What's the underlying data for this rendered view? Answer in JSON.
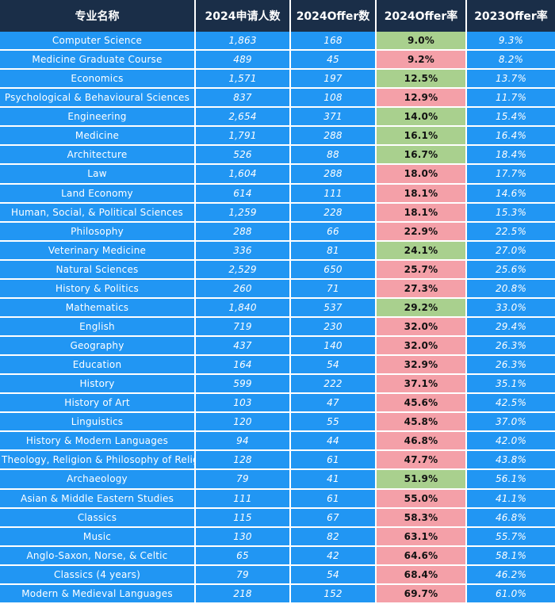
{
  "headers": [
    "专业名称",
    "2024申请人数",
    "2024Offer数",
    "2024Offer率",
    "2023Offer率"
  ],
  "colors": {
    "header_bg": "#1a2e48",
    "cell_bg": "#2196f3",
    "good": "#a9d08e",
    "bad": "#f4a0a8"
  },
  "rows": [
    {
      "major": "Computer Science",
      "applicants": "1,863",
      "offers": "168",
      "rate2024": "9.0%",
      "rate2023": "9.3%",
      "status": "green"
    },
    {
      "major": "Medicine Graduate Course",
      "applicants": "489",
      "offers": "45",
      "rate2024": "9.2%",
      "rate2023": "8.2%",
      "status": "red"
    },
    {
      "major": "Economics",
      "applicants": "1,571",
      "offers": "197",
      "rate2024": "12.5%",
      "rate2023": "13.7%",
      "status": "green"
    },
    {
      "major": "Psychological & Behavioural Sciences",
      "applicants": "837",
      "offers": "108",
      "rate2024": "12.9%",
      "rate2023": "11.7%",
      "status": "red"
    },
    {
      "major": "Engineering",
      "applicants": "2,654",
      "offers": "371",
      "rate2024": "14.0%",
      "rate2023": "15.4%",
      "status": "green"
    },
    {
      "major": "Medicine",
      "applicants": "1,791",
      "offers": "288",
      "rate2024": "16.1%",
      "rate2023": "16.4%",
      "status": "green"
    },
    {
      "major": "Architecture",
      "applicants": "526",
      "offers": "88",
      "rate2024": "16.7%",
      "rate2023": "18.4%",
      "status": "green"
    },
    {
      "major": "Law",
      "applicants": "1,604",
      "offers": "288",
      "rate2024": "18.0%",
      "rate2023": "17.7%",
      "status": "red"
    },
    {
      "major": "Land Economy",
      "applicants": "614",
      "offers": "111",
      "rate2024": "18.1%",
      "rate2023": "14.6%",
      "status": "red"
    },
    {
      "major": "Human, Social, & Political Sciences",
      "applicants": "1,259",
      "offers": "228",
      "rate2024": "18.1%",
      "rate2023": "15.3%",
      "status": "red"
    },
    {
      "major": "Philosophy",
      "applicants": "288",
      "offers": "66",
      "rate2024": "22.9%",
      "rate2023": "22.5%",
      "status": "red"
    },
    {
      "major": "Veterinary Medicine",
      "applicants": "336",
      "offers": "81",
      "rate2024": "24.1%",
      "rate2023": "27.0%",
      "status": "green"
    },
    {
      "major": "Natural Sciences",
      "applicants": "2,529",
      "offers": "650",
      "rate2024": "25.7%",
      "rate2023": "25.6%",
      "status": "red"
    },
    {
      "major": "History & Politics",
      "applicants": "260",
      "offers": "71",
      "rate2024": "27.3%",
      "rate2023": "20.8%",
      "status": "red"
    },
    {
      "major": "Mathematics",
      "applicants": "1,840",
      "offers": "537",
      "rate2024": "29.2%",
      "rate2023": "33.0%",
      "status": "green"
    },
    {
      "major": "English",
      "applicants": "719",
      "offers": "230",
      "rate2024": "32.0%",
      "rate2023": "29.4%",
      "status": "red"
    },
    {
      "major": "Geography",
      "applicants": "437",
      "offers": "140",
      "rate2024": "32.0%",
      "rate2023": "26.3%",
      "status": "red"
    },
    {
      "major": "Education",
      "applicants": "164",
      "offers": "54",
      "rate2024": "32.9%",
      "rate2023": "26.3%",
      "status": "red"
    },
    {
      "major": "History",
      "applicants": "599",
      "offers": "222",
      "rate2024": "37.1%",
      "rate2023": "35.1%",
      "status": "red"
    },
    {
      "major": "History of Art",
      "applicants": "103",
      "offers": "47",
      "rate2024": "45.6%",
      "rate2023": "42.5%",
      "status": "red"
    },
    {
      "major": "Linguistics",
      "applicants": "120",
      "offers": "55",
      "rate2024": "45.8%",
      "rate2023": "37.0%",
      "status": "red"
    },
    {
      "major": "History & Modern Languages",
      "applicants": "94",
      "offers": "44",
      "rate2024": "46.8%",
      "rate2023": "42.0%",
      "status": "red"
    },
    {
      "major": "Theology, Religion & Philosophy of Religion",
      "applicants": "128",
      "offers": "61",
      "rate2024": "47.7%",
      "rate2023": "43.8%",
      "status": "red"
    },
    {
      "major": "Archaeology",
      "applicants": "79",
      "offers": "41",
      "rate2024": "51.9%",
      "rate2023": "56.1%",
      "status": "green"
    },
    {
      "major": "Asian & Middle Eastern Studies",
      "applicants": "111",
      "offers": "61",
      "rate2024": "55.0%",
      "rate2023": "41.1%",
      "status": "red"
    },
    {
      "major": "Classics",
      "applicants": "115",
      "offers": "67",
      "rate2024": "58.3%",
      "rate2023": "46.8%",
      "status": "red"
    },
    {
      "major": "Music",
      "applicants": "130",
      "offers": "82",
      "rate2024": "63.1%",
      "rate2023": "55.7%",
      "status": "red"
    },
    {
      "major": "Anglo-Saxon, Norse, & Celtic",
      "applicants": "65",
      "offers": "42",
      "rate2024": "64.6%",
      "rate2023": "58.1%",
      "status": "red"
    },
    {
      "major": "Classics (4 years)",
      "applicants": "79",
      "offers": "54",
      "rate2024": "68.4%",
      "rate2023": "46.2%",
      "status": "red"
    },
    {
      "major": "Modern & Medieval Languages",
      "applicants": "218",
      "offers": "152",
      "rate2024": "69.7%",
      "rate2023": "61.0%",
      "status": "red"
    }
  ]
}
